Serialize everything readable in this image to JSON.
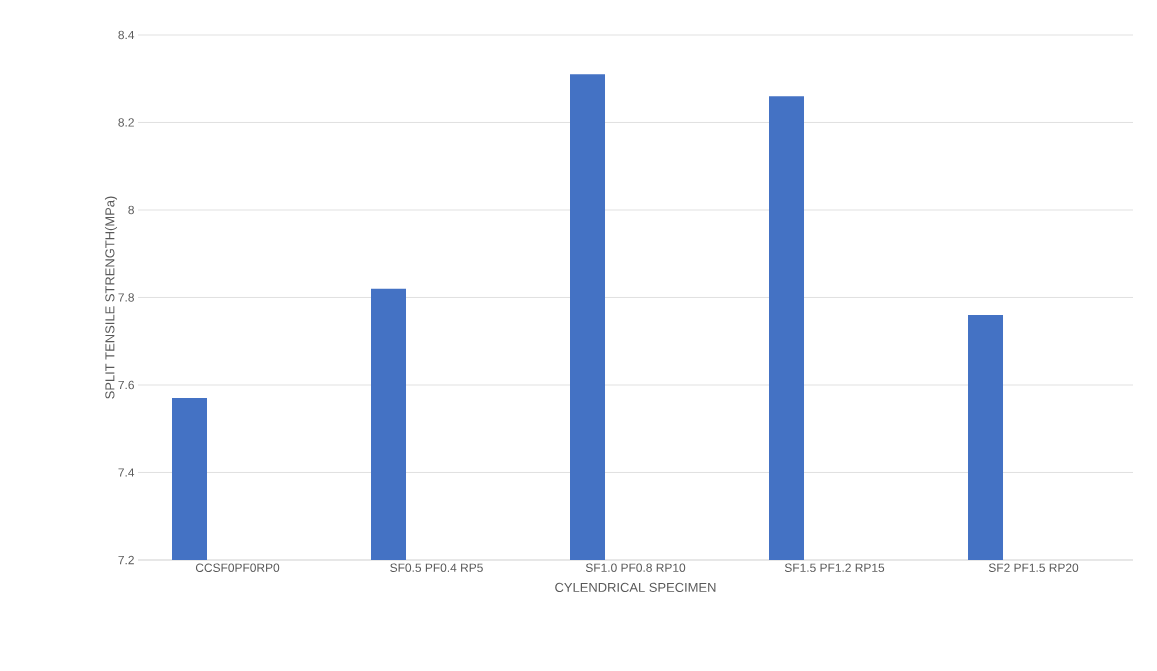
{
  "chart_data": {
    "type": "bar",
    "xlabel": "CYLENDRICAL SPECIMEN",
    "ylabel": "SPLIT TENSILE STRENGTH(MPa)",
    "categories": [
      "CCSF0PF0RP0",
      "SF0.5 PF0.4 RP5",
      "SF1.0 PF0.8 RP10",
      "SF1.5 PF1.2 RP15",
      "SF2 PF1.5 RP20"
    ],
    "values": [
      7.57,
      7.82,
      8.31,
      8.26,
      7.76
    ],
    "color": "#4472c4",
    "ylim": [
      7.2,
      8.4
    ],
    "yticks": [
      7.2,
      7.4,
      7.6,
      7.8,
      8,
      8.2,
      8.4
    ],
    "grid": "y"
  }
}
